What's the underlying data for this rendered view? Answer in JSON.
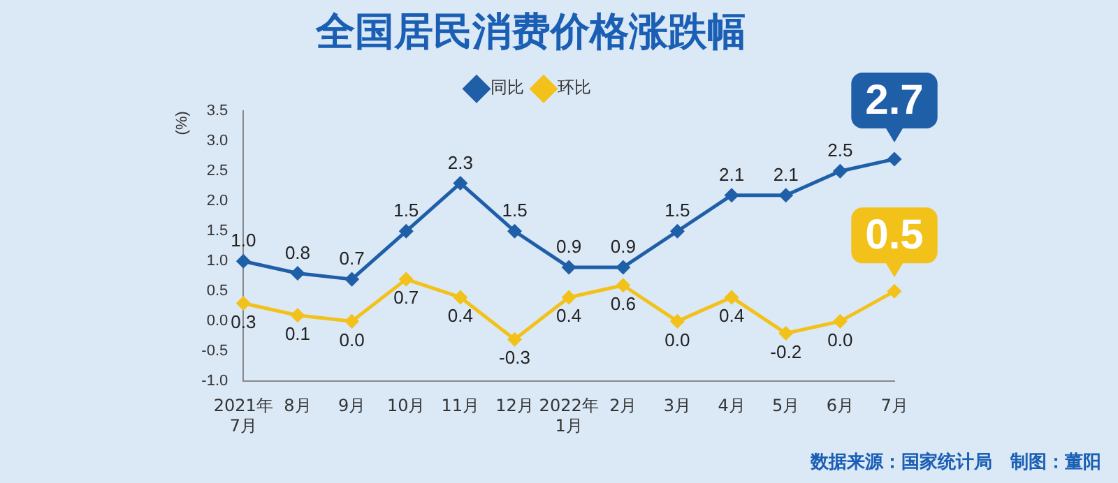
{
  "chart_data": {
    "type": "line",
    "title": "全国居民消费价格涨跌幅",
    "ylabel": "(%)",
    "categories": [
      "2021年 7月",
      "8月",
      "9月",
      "10月",
      "11月",
      "12月",
      "2022年 1月",
      "2月",
      "3月",
      "4月",
      "5月",
      "6月",
      "7月"
    ],
    "series": [
      {
        "name": "同比",
        "color": "#1f5fa8",
        "values": [
          1.0,
          0.8,
          0.7,
          1.5,
          2.3,
          1.5,
          0.9,
          0.9,
          1.5,
          2.1,
          2.1,
          2.5,
          2.7
        ],
        "value_labels": [
          "1.0",
          "0.8",
          "0.7",
          "1.5",
          "2.3",
          "1.5",
          "0.9",
          "0.9",
          "1.5",
          "2.1",
          "2.1",
          "2.5",
          "2.7"
        ]
      },
      {
        "name": "环比",
        "color": "#f2c21b",
        "values": [
          0.3,
          0.1,
          0.0,
          0.7,
          0.4,
          -0.3,
          0.4,
          0.6,
          0.0,
          0.4,
          -0.2,
          0.0,
          0.5
        ],
        "value_labels": [
          "0.3",
          "0.1",
          "0.0",
          "0.7",
          "0.4",
          "-0.3",
          "0.4",
          "0.6",
          "0.0",
          "0.4",
          "-0.2",
          "0.0",
          "0.5"
        ]
      }
    ],
    "ylim": [
      -1.0,
      3.5
    ],
    "yticks": [
      {
        "value": -1,
        "label": "-1.0"
      },
      {
        "value": -0.5,
        "label": "-0.5"
      },
      {
        "value": 0,
        "label": "0.0"
      },
      {
        "value": 0.5,
        "label": "0.5"
      },
      {
        "value": 1,
        "label": "1.0"
      },
      {
        "value": 1.5,
        "label": "1.5"
      },
      {
        "value": 2,
        "label": "2.0"
      },
      {
        "value": 2.5,
        "label": "2.5"
      },
      {
        "value": 3,
        "label": "3.0"
      },
      {
        "value": 3.5,
        "label": "3.5"
      }
    ],
    "legend": "top",
    "marker": "diamond",
    "line_style": "solid",
    "annotations": [
      "数据来源：国家统计局　制图：董阳"
    ]
  }
}
